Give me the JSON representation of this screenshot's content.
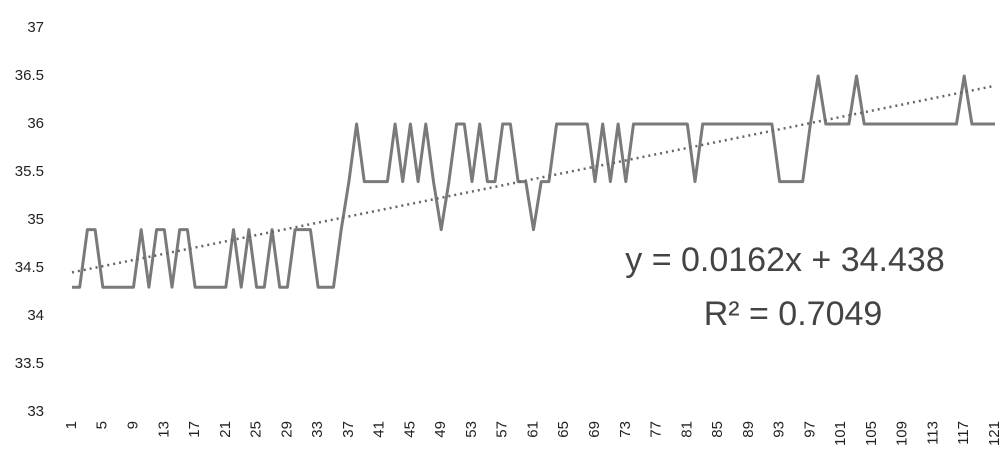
{
  "chart_data": {
    "type": "line",
    "categories": [
      1,
      null,
      null,
      null,
      5,
      null,
      null,
      null,
      9,
      null,
      null,
      null,
      13,
      null,
      null,
      null,
      17,
      null,
      null,
      null,
      21,
      null,
      null,
      null,
      25,
      null,
      null,
      null,
      29,
      null,
      null,
      null,
      33,
      null,
      null,
      null,
      37,
      null,
      null,
      null,
      41,
      null,
      null,
      null,
      45,
      null,
      null,
      null,
      49,
      null,
      null,
      null,
      53,
      null,
      null,
      null,
      57,
      null,
      null,
      null,
      61,
      null,
      null,
      null,
      65,
      null,
      null,
      null,
      69,
      null,
      null,
      null,
      73,
      null,
      null,
      null,
      77,
      null,
      null,
      null,
      81,
      null,
      null,
      null,
      85,
      null,
      null,
      null,
      89,
      null,
      null,
      null,
      93,
      null,
      null,
      null,
      97,
      null,
      null,
      null,
      101,
      null,
      null,
      null,
      105,
      null,
      null,
      null,
      109,
      null,
      null,
      null,
      113,
      null,
      null,
      null,
      117,
      null,
      null,
      null,
      121
    ],
    "values": [
      34.3,
      34.3,
      34.9,
      34.9,
      34.3,
      34.3,
      34.3,
      34.3,
      34.3,
      34.9,
      34.3,
      34.9,
      34.9,
      34.3,
      34.9,
      34.9,
      34.3,
      34.3,
      34.3,
      34.3,
      34.3,
      34.9,
      34.3,
      34.9,
      34.3,
      34.3,
      34.9,
      34.3,
      34.3,
      34.9,
      34.9,
      34.9,
      34.3,
      34.3,
      34.3,
      34.9,
      35.4,
      36,
      35.4,
      35.4,
      35.4,
      35.4,
      36,
      35.4,
      36,
      35.4,
      36,
      35.4,
      34.9,
      35.4,
      36,
      36,
      35.4,
      36,
      35.4,
      35.4,
      36,
      36,
      35.4,
      35.4,
      34.9,
      35.4,
      35.4,
      36,
      36,
      36,
      36,
      36,
      35.4,
      36,
      35.4,
      36,
      35.4,
      36,
      36,
      36,
      36,
      36,
      36,
      36,
      36,
      35.4,
      36,
      36,
      36,
      36,
      36,
      36,
      36,
      36,
      36,
      36,
      35.4,
      35.4,
      35.4,
      35.4,
      36,
      36.5,
      36,
      36,
      36,
      36,
      36.5,
      36,
      36,
      36,
      36,
      36,
      36,
      36,
      36,
      36,
      36,
      36,
      36,
      36,
      36.5,
      36,
      36,
      36,
      36
    ],
    "color": "#7a7a7a",
    "ylim": [
      33,
      37
    ],
    "yticks": [
      33,
      33.5,
      34,
      34.5,
      35,
      35.5,
      36,
      36.5,
      37
    ],
    "grid": false,
    "trendline": {
      "slope": 0.0162,
      "intercept": 34.438,
      "color": "#666666",
      "equation": "y = 0.0162x + 34.438",
      "r2": "R² = 0.7049"
    }
  }
}
